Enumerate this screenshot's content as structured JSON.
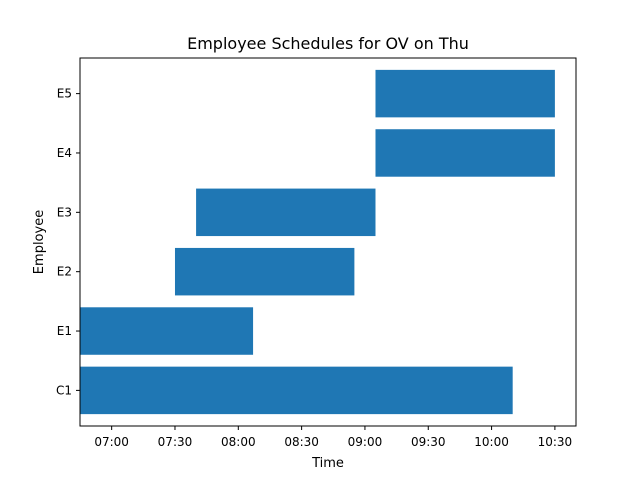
{
  "chart_data": {
    "type": "bar",
    "orientation": "horizontal",
    "title": "Employee Schedules for OV on Thu",
    "xlabel": "Time",
    "ylabel": "Employee",
    "grid": false,
    "bar_color": "#1f77b4",
    "categories": [
      "C1",
      "E1",
      "E2",
      "E3",
      "E4",
      "E5"
    ],
    "bars": [
      {
        "employee": "C1",
        "start": "06:45",
        "end": "10:10"
      },
      {
        "employee": "E1",
        "start": "06:45",
        "end": "08:07"
      },
      {
        "employee": "E2",
        "start": "07:30",
        "end": "08:55"
      },
      {
        "employee": "E3",
        "start": "07:40",
        "end": "09:05"
      },
      {
        "employee": "E4",
        "start": "09:05",
        "end": "10:30"
      },
      {
        "employee": "E5",
        "start": "09:05",
        "end": "10:30"
      }
    ],
    "xticks": [
      "07:00",
      "07:30",
      "08:00",
      "08:30",
      "09:00",
      "09:30",
      "10:00",
      "10:30"
    ],
    "xlim": [
      "06:45",
      "10:40"
    ]
  }
}
